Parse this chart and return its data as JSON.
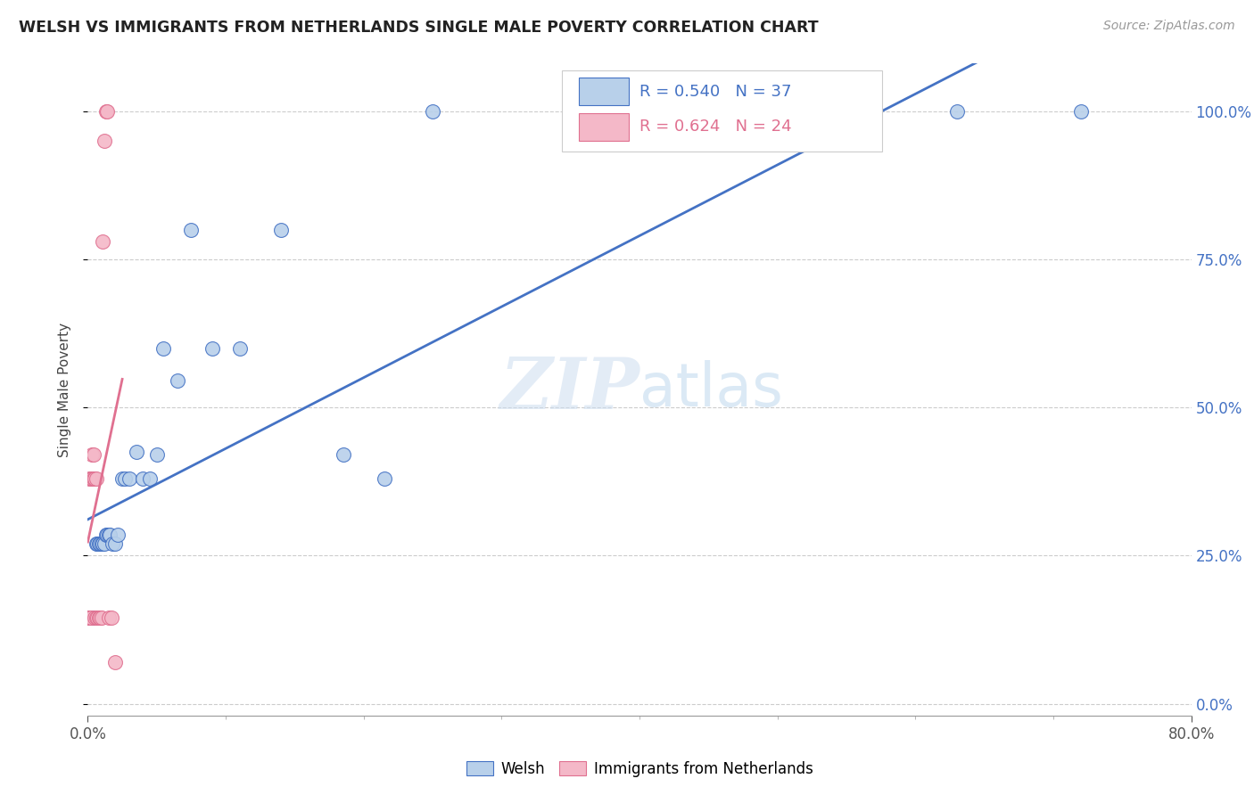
{
  "title": "WELSH VS IMMIGRANTS FROM NETHERLANDS SINGLE MALE POVERTY CORRELATION CHART",
  "source": "Source: ZipAtlas.com",
  "ylabel": "Single Male Poverty",
  "xlim": [
    0.0,
    0.8
  ],
  "ylim": [
    -0.02,
    1.08
  ],
  "watermark_zip": "ZIP",
  "watermark_atlas": "atlas",
  "legend_welsh_r": "R = 0.540",
  "legend_welsh_n": "N = 37",
  "legend_nl_r": "R = 0.624",
  "legend_nl_n": "N = 24",
  "welsh_color": "#b8d0ea",
  "nl_color": "#f4b8c8",
  "welsh_line_color": "#4472c4",
  "nl_line_color": "#e07090",
  "welsh_x": [
    0.001,
    0.002,
    0.003,
    0.004,
    0.005,
    0.006,
    0.007,
    0.008,
    0.009,
    0.01,
    0.011,
    0.012,
    0.013,
    0.014,
    0.015,
    0.016,
    0.018,
    0.02,
    0.022,
    0.025,
    0.027,
    0.03,
    0.035,
    0.04,
    0.045,
    0.05,
    0.055,
    0.065,
    0.075,
    0.09,
    0.11,
    0.14,
    0.185,
    0.215,
    0.25,
    0.63,
    0.72
  ],
  "welsh_y": [
    0.145,
    0.145,
    0.145,
    0.145,
    0.145,
    0.27,
    0.27,
    0.27,
    0.27,
    0.27,
    0.27,
    0.27,
    0.285,
    0.285,
    0.285,
    0.285,
    0.27,
    0.27,
    0.285,
    0.38,
    0.38,
    0.38,
    0.425,
    0.38,
    0.38,
    0.42,
    0.6,
    0.545,
    0.8,
    0.6,
    0.6,
    0.8,
    0.42,
    0.38,
    1.0,
    1.0,
    1.0
  ],
  "nl_x": [
    0.001,
    0.001,
    0.001,
    0.002,
    0.002,
    0.003,
    0.003,
    0.004,
    0.004,
    0.005,
    0.005,
    0.006,
    0.006,
    0.007,
    0.008,
    0.009,
    0.01,
    0.011,
    0.012,
    0.013,
    0.014,
    0.015,
    0.017,
    0.02
  ],
  "nl_y": [
    0.145,
    0.145,
    0.38,
    0.145,
    0.38,
    0.38,
    0.42,
    0.38,
    0.42,
    0.145,
    0.38,
    0.145,
    0.38,
    0.145,
    0.145,
    0.145,
    0.145,
    0.78,
    0.95,
    1.0,
    1.0,
    0.145,
    0.145,
    0.07
  ],
  "ytick_vals": [
    0.0,
    0.25,
    0.5,
    0.75,
    1.0
  ],
  "ytick_labels": [
    "0.0%",
    "25.0%",
    "50.0%",
    "75.0%",
    "100.0%"
  ]
}
